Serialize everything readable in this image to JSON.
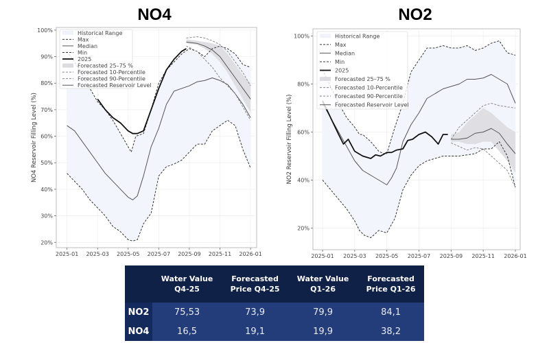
{
  "chart_data": [
    {
      "type": "line",
      "title": "NO4",
      "xlabel": "",
      "ylabel": "NO4 Reservoir Filling Level (%)",
      "x_unit": "months since 2025-01-01",
      "xlim": [
        -0.7,
        12.4
      ],
      "ylim": [
        18,
        101
      ],
      "x_ticks": [
        0,
        2,
        4,
        6,
        8,
        10,
        12
      ],
      "x_tick_labels": [
        "2025-01",
        "2025-03",
        "2025-05",
        "2025-07",
        "2025-09",
        "2025-11",
        "2026-01"
      ],
      "y_ticks": [
        20,
        30,
        40,
        50,
        60,
        70,
        80,
        90,
        100
      ],
      "y_tick_labels": [
        "20%",
        "30%",
        "40%",
        "50%",
        "60%",
        "70%",
        "80%",
        "90%",
        "100%"
      ],
      "grid": true,
      "legend_position": "top-left",
      "legend": [
        "Historical Range",
        "Max",
        "Median",
        "Min",
        "2025",
        "Forecasted 25–75 %",
        "Forecasted 10-Percentile",
        "Forecasted 90-Percentile",
        "Forecasted Reservoir Level"
      ],
      "series": [
        {
          "name": "Max",
          "style": "dashed",
          "x": [
            0,
            0.5,
            1,
            1.5,
            2,
            2.5,
            3,
            3.5,
            4,
            4.2,
            4.5,
            5,
            5.5,
            6,
            6.5,
            7,
            7.5,
            8,
            8.5,
            9,
            9.5,
            10,
            10.5,
            11,
            11.5,
            12
          ],
          "y": [
            92,
            88,
            83,
            78,
            73,
            70,
            66,
            61,
            56,
            54,
            60,
            61,
            70,
            80,
            85,
            88,
            91,
            93,
            92,
            90,
            93,
            94,
            93,
            91,
            87,
            86
          ]
        },
        {
          "name": "Median",
          "style": "solid",
          "x": [
            0,
            0.5,
            1,
            1.5,
            2,
            2.5,
            3,
            3.5,
            4,
            4.3,
            4.6,
            5,
            5.5,
            6,
            6.5,
            7,
            7.5,
            8,
            8.5,
            9,
            9.5,
            10,
            10.5,
            11,
            11.5,
            12
          ],
          "y": [
            64,
            62,
            58,
            54,
            50,
            46,
            43,
            40,
            37,
            36,
            37.5,
            45,
            56,
            63,
            72,
            77,
            78,
            79,
            80.5,
            81,
            82,
            81,
            79.5,
            76,
            72,
            67
          ]
        },
        {
          "name": "Min",
          "style": "dashed",
          "x": [
            0,
            0.5,
            1,
            1.5,
            2,
            2.5,
            3,
            3.5,
            4,
            4.3,
            4.6,
            5,
            5.5,
            6,
            6.5,
            7,
            7.5,
            8,
            8.5,
            9,
            9.5,
            10,
            10.5,
            11,
            11.5,
            12
          ],
          "y": [
            46,
            43,
            40,
            36,
            33,
            30,
            26,
            24,
            21,
            20.5,
            21,
            27,
            31,
            45,
            48.5,
            49.5,
            51,
            54,
            57,
            57,
            62,
            64,
            66,
            64,
            55,
            48
          ]
        },
        {
          "name": "2025",
          "style": "solid-bold",
          "x": [
            2,
            2.5,
            3,
            3.5,
            4,
            4.3,
            4.6,
            5,
            5.5,
            6,
            6.5,
            7,
            7.5,
            7.8
          ],
          "y": [
            74,
            70,
            67,
            65,
            62,
            61,
            61,
            62,
            70,
            78,
            85,
            89,
            92,
            93
          ]
        },
        {
          "name": "Forecasted 25–75 %",
          "style": "band",
          "x": [
            7.8,
            8.5,
            9,
            9.5,
            10,
            10.5,
            11,
            11.5,
            12
          ],
          "y_low": [
            95,
            94.5,
            93,
            91,
            88,
            84,
            79,
            74,
            69
          ],
          "y_high": [
            96.5,
            96,
            95.5,
            95,
            94,
            91,
            87,
            83,
            80
          ]
        },
        {
          "name": "Forecasted 10-Percentile",
          "style": "dashed-light",
          "x": [
            7.8,
            8.5,
            9,
            9.5,
            10,
            10.5,
            11,
            11.5,
            12
          ],
          "y": [
            94,
            92,
            89,
            86,
            82,
            79,
            76,
            71,
            66
          ]
        },
        {
          "name": "Forecasted 90-Percentile",
          "style": "dashed-light",
          "x": [
            7.8,
            8.5,
            9,
            9.5,
            10,
            10.5,
            11,
            11.5,
            12
          ],
          "y": [
            97,
            97.5,
            97,
            96,
            94.5,
            92,
            88,
            84,
            79
          ]
        },
        {
          "name": "Forecasted Reservoir Level",
          "style": "solid",
          "x": [
            7.8,
            8.5,
            9,
            9.5,
            10,
            10.5,
            11,
            11.5,
            12
          ],
          "y": [
            95.5,
            95,
            94,
            92.5,
            90,
            86,
            82,
            78,
            74
          ]
        }
      ]
    },
    {
      "type": "line",
      "title": "NO2",
      "xlabel": "",
      "ylabel": "NO2 Reservoir Filling Level (%)",
      "x_unit": "months since 2025-01-01",
      "xlim": [
        -0.6,
        12.3
      ],
      "ylim": [
        11,
        103
      ],
      "x_ticks": [
        0,
        2,
        4,
        6,
        8,
        10,
        12
      ],
      "x_tick_labels": [
        "2025-01",
        "2025-03",
        "2025-05",
        "2025-07",
        "2025-09",
        "2025-11",
        "2026-01"
      ],
      "y_ticks": [
        20,
        40,
        60,
        80,
        100
      ],
      "y_tick_labels": [
        "20%",
        "40%",
        "60%",
        "80%",
        "100%"
      ],
      "grid": true,
      "legend_position": "top-left",
      "legend": [
        "Historical Range",
        "Max",
        "Median",
        "Min",
        "2025",
        "Forecasted 25–75 %",
        "Forecasted 10-Percentile",
        "Forecasted 90-Percentile",
        "Forecasted Reservoir Level"
      ],
      "series": [
        {
          "name": "Max",
          "style": "dashed",
          "x": [
            0,
            0.5,
            1,
            1.5,
            2,
            2.3,
            2.5,
            3,
            3.5,
            3.8,
            4,
            4.5,
            5,
            5.5,
            6,
            6.5,
            7,
            7.5,
            8,
            8.5,
            9,
            9.5,
            10,
            10.5,
            11,
            11.5,
            12
          ],
          "y": [
            86,
            79,
            72,
            66,
            62,
            59,
            59,
            56,
            52,
            51,
            51,
            62,
            72,
            85,
            90,
            95,
            95,
            96,
            95,
            95,
            96,
            94,
            95,
            97,
            98,
            93,
            92
          ]
        },
        {
          "name": "Median",
          "style": "solid",
          "x": [
            0,
            0.5,
            1,
            1.5,
            2,
            2.5,
            3,
            3.5,
            4,
            4.3,
            4.6,
            5,
            5.5,
            6,
            6.5,
            7,
            7.5,
            8,
            8.5,
            9,
            9.5,
            10,
            10.5,
            11,
            11.5,
            12
          ],
          "y": [
            72,
            66,
            60,
            54,
            48,
            44,
            42,
            40,
            38,
            41,
            45,
            56,
            63,
            68,
            74,
            76,
            78,
            79,
            80,
            82,
            82,
            82.5,
            84,
            82,
            80,
            72
          ]
        },
        {
          "name": "Min",
          "style": "dashed",
          "x": [
            0,
            0.5,
            1,
            1.5,
            2,
            2.3,
            2.6,
            3,
            3.5,
            4,
            4.5,
            5,
            5.5,
            6,
            6.5,
            7,
            7.5,
            8,
            8.5,
            9,
            9.5,
            10,
            10.5,
            11,
            11.5,
            12
          ],
          "y": [
            40,
            36,
            32,
            28,
            23,
            19,
            17,
            16,
            19,
            18,
            24,
            36,
            42,
            46,
            48,
            49,
            50,
            50,
            50,
            50.5,
            51,
            53,
            53,
            56,
            50,
            37
          ]
        },
        {
          "name": "2025",
          "style": "solid-bold",
          "x": [
            0,
            0.5,
            1,
            1.3,
            1.6,
            2,
            2.5,
            3,
            3.3,
            3.6,
            4,
            4.3,
            4.6,
            5,
            5.3,
            5.6,
            6,
            6.4,
            6.8,
            7.2,
            7.5,
            7.8
          ],
          "y": [
            73,
            66,
            59,
            55,
            57,
            52,
            50,
            49,
            50.5,
            50,
            51.5,
            51.5,
            52.5,
            53,
            56.5,
            57,
            59,
            60,
            58,
            55,
            59,
            59
          ]
        },
        {
          "name": "Forecasted 25–75 %",
          "style": "band",
          "x": [
            8,
            8.5,
            9,
            9.5,
            10,
            10.5,
            11,
            11.5,
            12
          ],
          "y_low": [
            56,
            56,
            55,
            55,
            56,
            56,
            52,
            48,
            43
          ],
          "y_high": [
            59,
            60,
            64,
            67,
            70,
            68,
            65,
            62,
            60
          ]
        },
        {
          "name": "Forecasted 10-Percentile",
          "style": "dashed-light",
          "x": [
            8,
            8.5,
            9,
            9.5,
            10,
            10.5,
            11,
            11.5,
            12
          ],
          "y": [
            55.5,
            54,
            52.5,
            53.5,
            53,
            50,
            47,
            44,
            37
          ]
        },
        {
          "name": "Forecasted 90-Percentile",
          "style": "dashed-light",
          "x": [
            8,
            8.5,
            9,
            9.5,
            10,
            10.5,
            11,
            11.5,
            12
          ],
          "y": [
            57,
            62,
            65,
            68,
            71,
            72,
            71,
            70.5,
            70
          ]
        },
        {
          "name": "Forecasted Reservoir Level",
          "style": "solid",
          "x": [
            8,
            8.5,
            9,
            9.5,
            10,
            10.5,
            11,
            11.5,
            12
          ],
          "y": [
            57,
            57,
            57.5,
            59.5,
            60,
            61.5,
            59.5,
            55,
            51
          ]
        }
      ]
    }
  ],
  "table": {
    "headers": [
      "",
      "Water Value Q4-25",
      "Forecasted Price Q4-25",
      "Water Value Q1-26",
      "Forecasted Price Q1-26"
    ],
    "header_lines": [
      [
        "",
        ""
      ],
      [
        "Water Value",
        "Q4-25"
      ],
      [
        "Forecasted",
        "Price Q4-25"
      ],
      [
        "Water Value",
        "Q1-26"
      ],
      [
        "Forecasted",
        "Price Q1-26"
      ]
    ],
    "rows": [
      {
        "area": "NO2",
        "values": [
          "75,53",
          "73,9",
          "79,9",
          "84,1"
        ]
      },
      {
        "area": "NO4",
        "values": [
          "16,5",
          "19,1",
          "19,9",
          "38,2"
        ]
      }
    ],
    "colors": {
      "header_bg": "#0f2147",
      "rowhead_bg": "#142a5c",
      "cell_bg": "#233d7a"
    }
  }
}
